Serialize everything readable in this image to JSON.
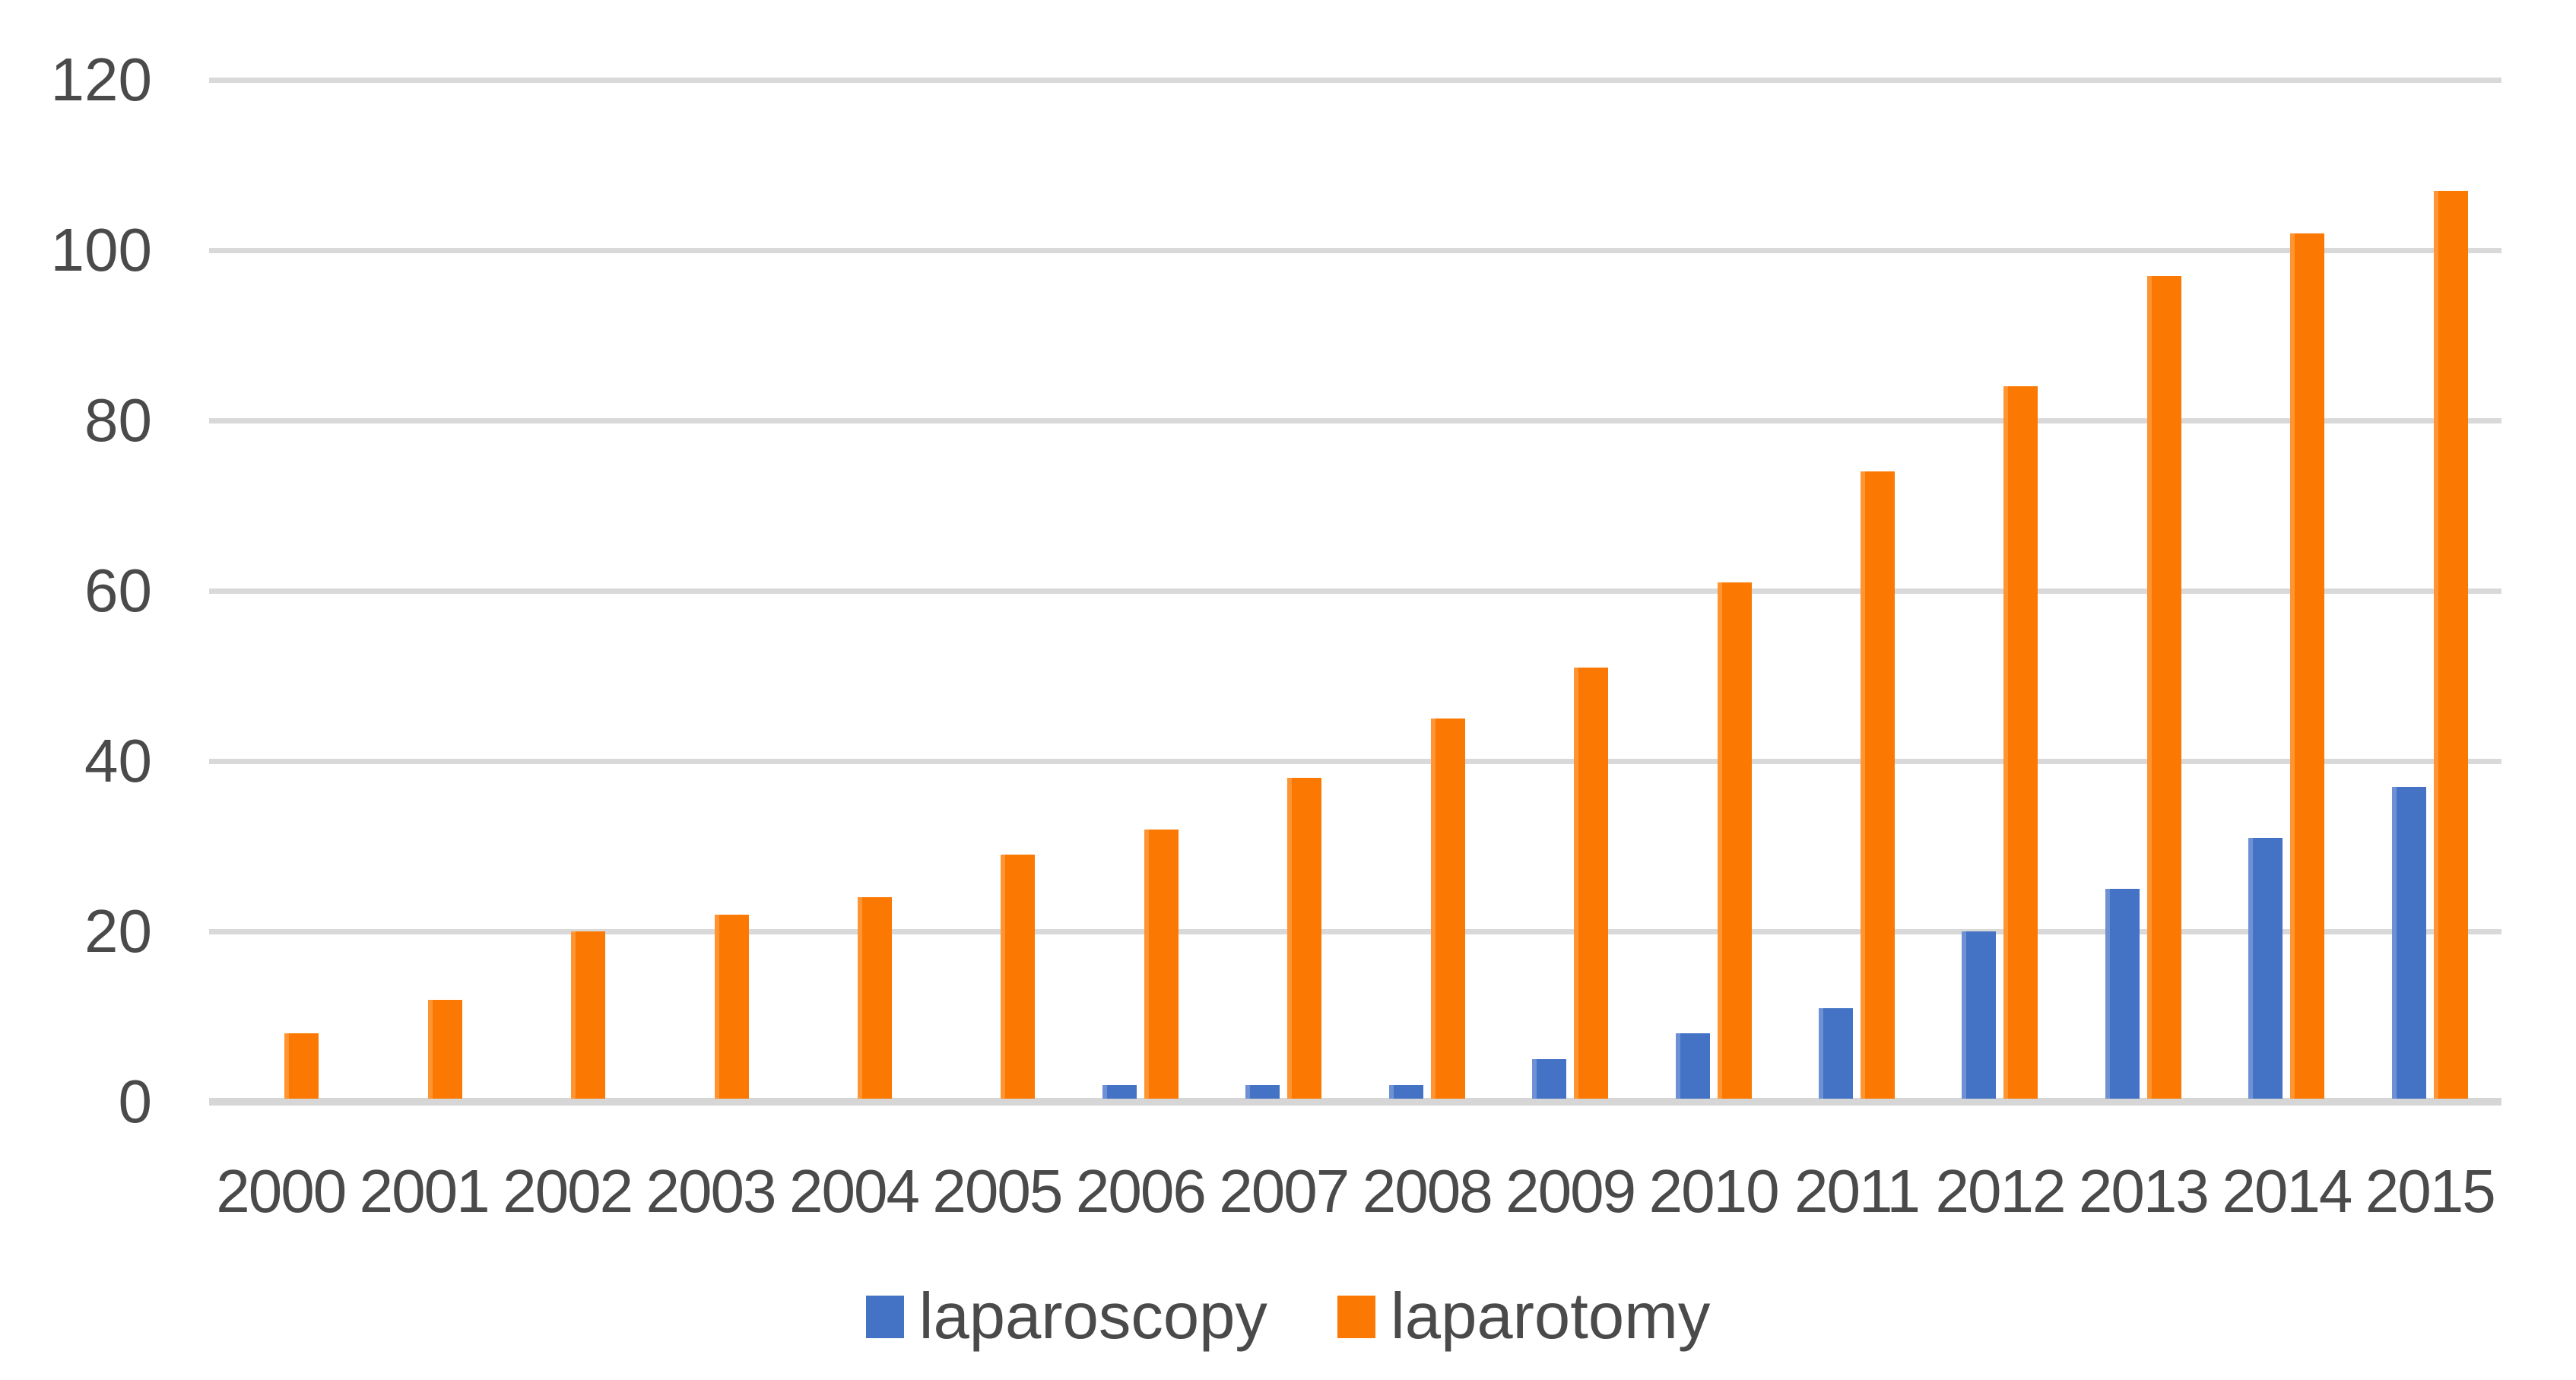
{
  "chart_data": {
    "type": "bar",
    "title": "",
    "categories": [
      "2000",
      "2001",
      "2002",
      "2003",
      "2004",
      "2005",
      "2006",
      "2007",
      "2008",
      "2009",
      "2010",
      "2011",
      "2012",
      "2013",
      "2014",
      "2015"
    ],
    "series": [
      {
        "name": "laparoscopy",
        "color": "#4472C4",
        "values": [
          0,
          0,
          0,
          0,
          0,
          0,
          2,
          2,
          2,
          5,
          8,
          11,
          20,
          25,
          31,
          37
        ]
      },
      {
        "name": "laparotomy",
        "color": "#FB7902",
        "values": [
          8,
          12,
          20,
          22,
          24,
          29,
          32,
          38,
          45,
          51,
          61,
          74,
          84,
          97,
          102,
          107
        ]
      }
    ],
    "xlabel": "",
    "ylabel": "",
    "ylim": [
      0,
      120
    ],
    "yticks": [
      0,
      20,
      40,
      60,
      80,
      100,
      120
    ],
    "grid": "horizontal-only",
    "legend_position": "bottom-center"
  },
  "legend": {
    "items": [
      {
        "label": "laparoscopy",
        "color": "#4472C4"
      },
      {
        "label": "laparotomy",
        "color": "#FB7902"
      }
    ]
  },
  "colors": {
    "background": "#FFFFFF",
    "gridline": "#D9D9D9",
    "axis_line": "#D6D6D6",
    "tick_text": "#4A4A4A",
    "series_blue": "#4472C4",
    "series_orange": "#FB7902"
  }
}
